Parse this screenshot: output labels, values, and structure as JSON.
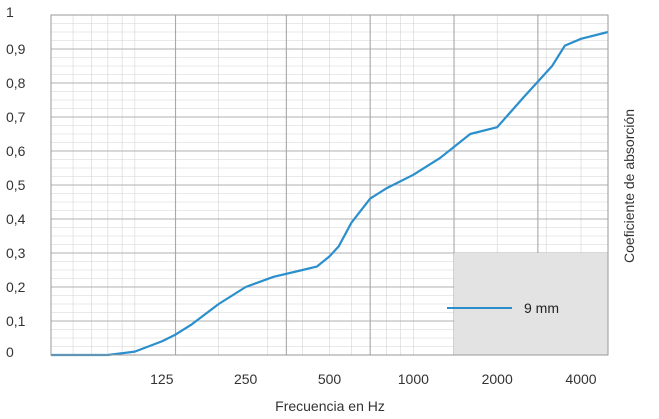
{
  "chart_data": {
    "type": "line",
    "xlabel": "Frecuencia en Hz",
    "ylabel": "Coeficiente de absorción",
    "xscale": "log",
    "xlim": [
      50,
      5000
    ],
    "ylim": [
      0,
      1
    ],
    "x_ticks": [
      {
        "value": 125,
        "label": "125"
      },
      {
        "value": 250,
        "label": "250"
      },
      {
        "value": 500,
        "label": "500"
      },
      {
        "value": 1000,
        "label": "1000"
      },
      {
        "value": 2000,
        "label": "2000"
      },
      {
        "value": 4000,
        "label": "4000"
      }
    ],
    "y_ticks": [
      {
        "value": 0,
        "label": "0"
      },
      {
        "value": 0.1,
        "label": "0,1"
      },
      {
        "value": 0.2,
        "label": "0,2"
      },
      {
        "value": 0.3,
        "label": "0,3"
      },
      {
        "value": 0.4,
        "label": "0,4"
      },
      {
        "value": 0.5,
        "label": "0,5"
      },
      {
        "value": 0.6,
        "label": "0,6"
      },
      {
        "value": 0.7,
        "label": "0,7"
      },
      {
        "value": 0.8,
        "label": "0,8"
      },
      {
        "value": 0.9,
        "label": "0,9"
      },
      {
        "value": 1,
        "label": "1"
      }
    ],
    "grid": true,
    "legend_placement": "bottom-right",
    "series": [
      {
        "name": "9 mm",
        "color": "#2a8fcc",
        "x": [
          50,
          63,
          80,
          100,
          125,
          140,
          160,
          200,
          250,
          315,
          400,
          450,
          500,
          540,
          600,
          700,
          800,
          1000,
          1250,
          1600,
          2000,
          2500,
          3150,
          3500,
          4000,
          5000
        ],
        "y": [
          0.0,
          0.0,
          0.0,
          0.01,
          0.04,
          0.06,
          0.09,
          0.15,
          0.2,
          0.23,
          0.25,
          0.26,
          0.29,
          0.32,
          0.39,
          0.46,
          0.49,
          0.53,
          0.58,
          0.65,
          0.67,
          0.76,
          0.85,
          0.91,
          0.93,
          0.95
        ]
      }
    ]
  }
}
